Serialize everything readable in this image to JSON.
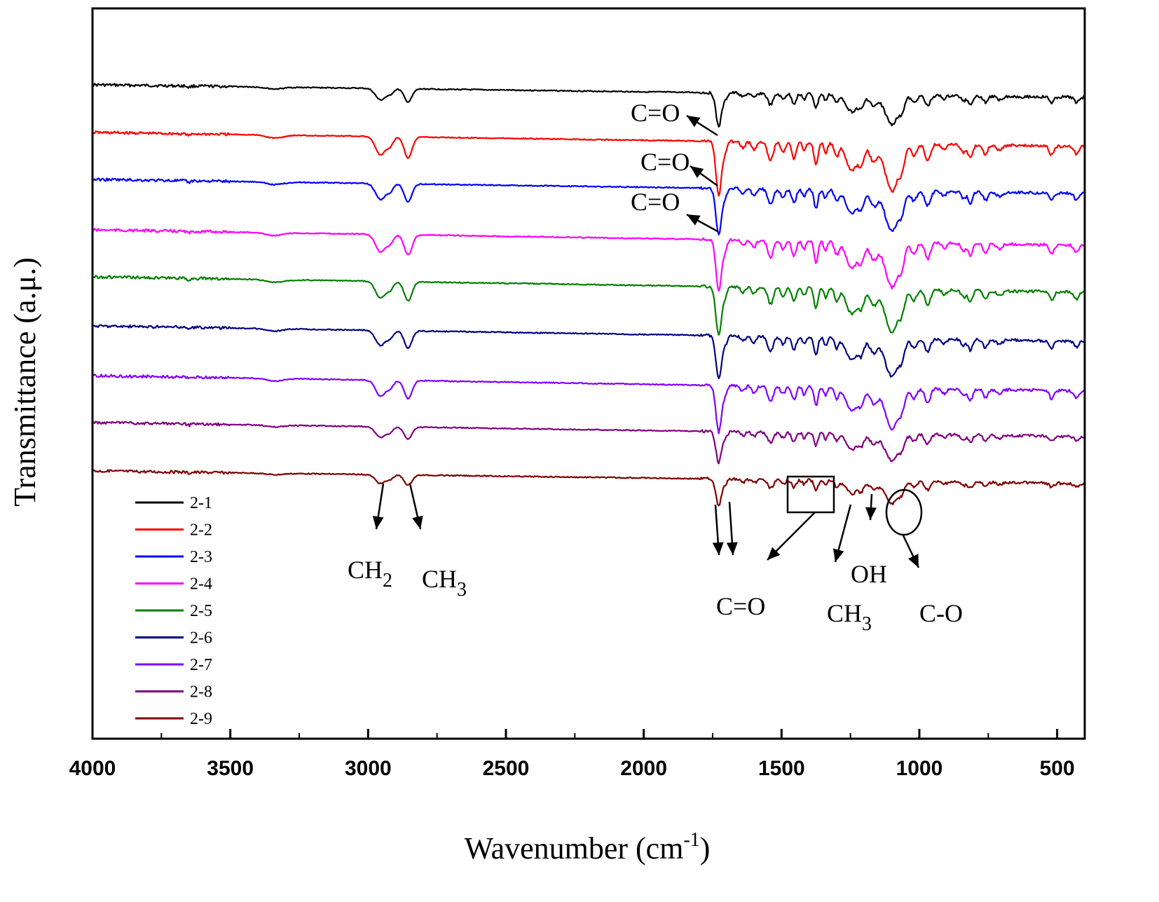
{
  "chart_data": {
    "type": "line",
    "xlabel": "Wavenumber (cm",
    "xlabel_sup": "-1",
    "xlabel_close": ")",
    "ylabel": "Transmittance (a.μ.)",
    "xlim": [
      4000,
      400
    ],
    "x_reversed": true,
    "xticks": [
      4000,
      3500,
      3000,
      2500,
      2000,
      1500,
      1000,
      500
    ],
    "xtick_labels": [
      "4000",
      "3500",
      "3000",
      "2500",
      "2000",
      "1500",
      "1000",
      "500"
    ],
    "legend_position": "bottom-left",
    "series": [
      {
        "name": "2-1",
        "color": "#000000",
        "baseline": 0.0
      },
      {
        "name": "2-2",
        "color": "#ff0000",
        "baseline": 1.0
      },
      {
        "name": "2-3",
        "color": "#0000ff",
        "baseline": 2.0
      },
      {
        "name": "2-4",
        "color": "#ff00ff",
        "baseline": 3.0
      },
      {
        "name": "2-5",
        "color": "#008000",
        "baseline": 4.0
      },
      {
        "name": "2-6",
        "color": "#000080",
        "baseline": 5.0
      },
      {
        "name": "2-7",
        "color": "#8000ff",
        "baseline": 6.0
      },
      {
        "name": "2-8",
        "color": "#800080",
        "baseline": 7.0
      },
      {
        "name": "2-9",
        "color": "#800000",
        "baseline": 8.0
      }
    ],
    "annotations": {
      "co1": "C=O",
      "co2": "C=O",
      "co3": "C=O",
      "ch2": "CH",
      "ch2_sub": "2",
      "ch3a": "CH",
      "ch3a_sub": "3",
      "co_bottom": "C=O",
      "ch3b": "CH",
      "ch3b_sub": "3",
      "oh": "OH",
      "c_o": "C-O"
    }
  }
}
